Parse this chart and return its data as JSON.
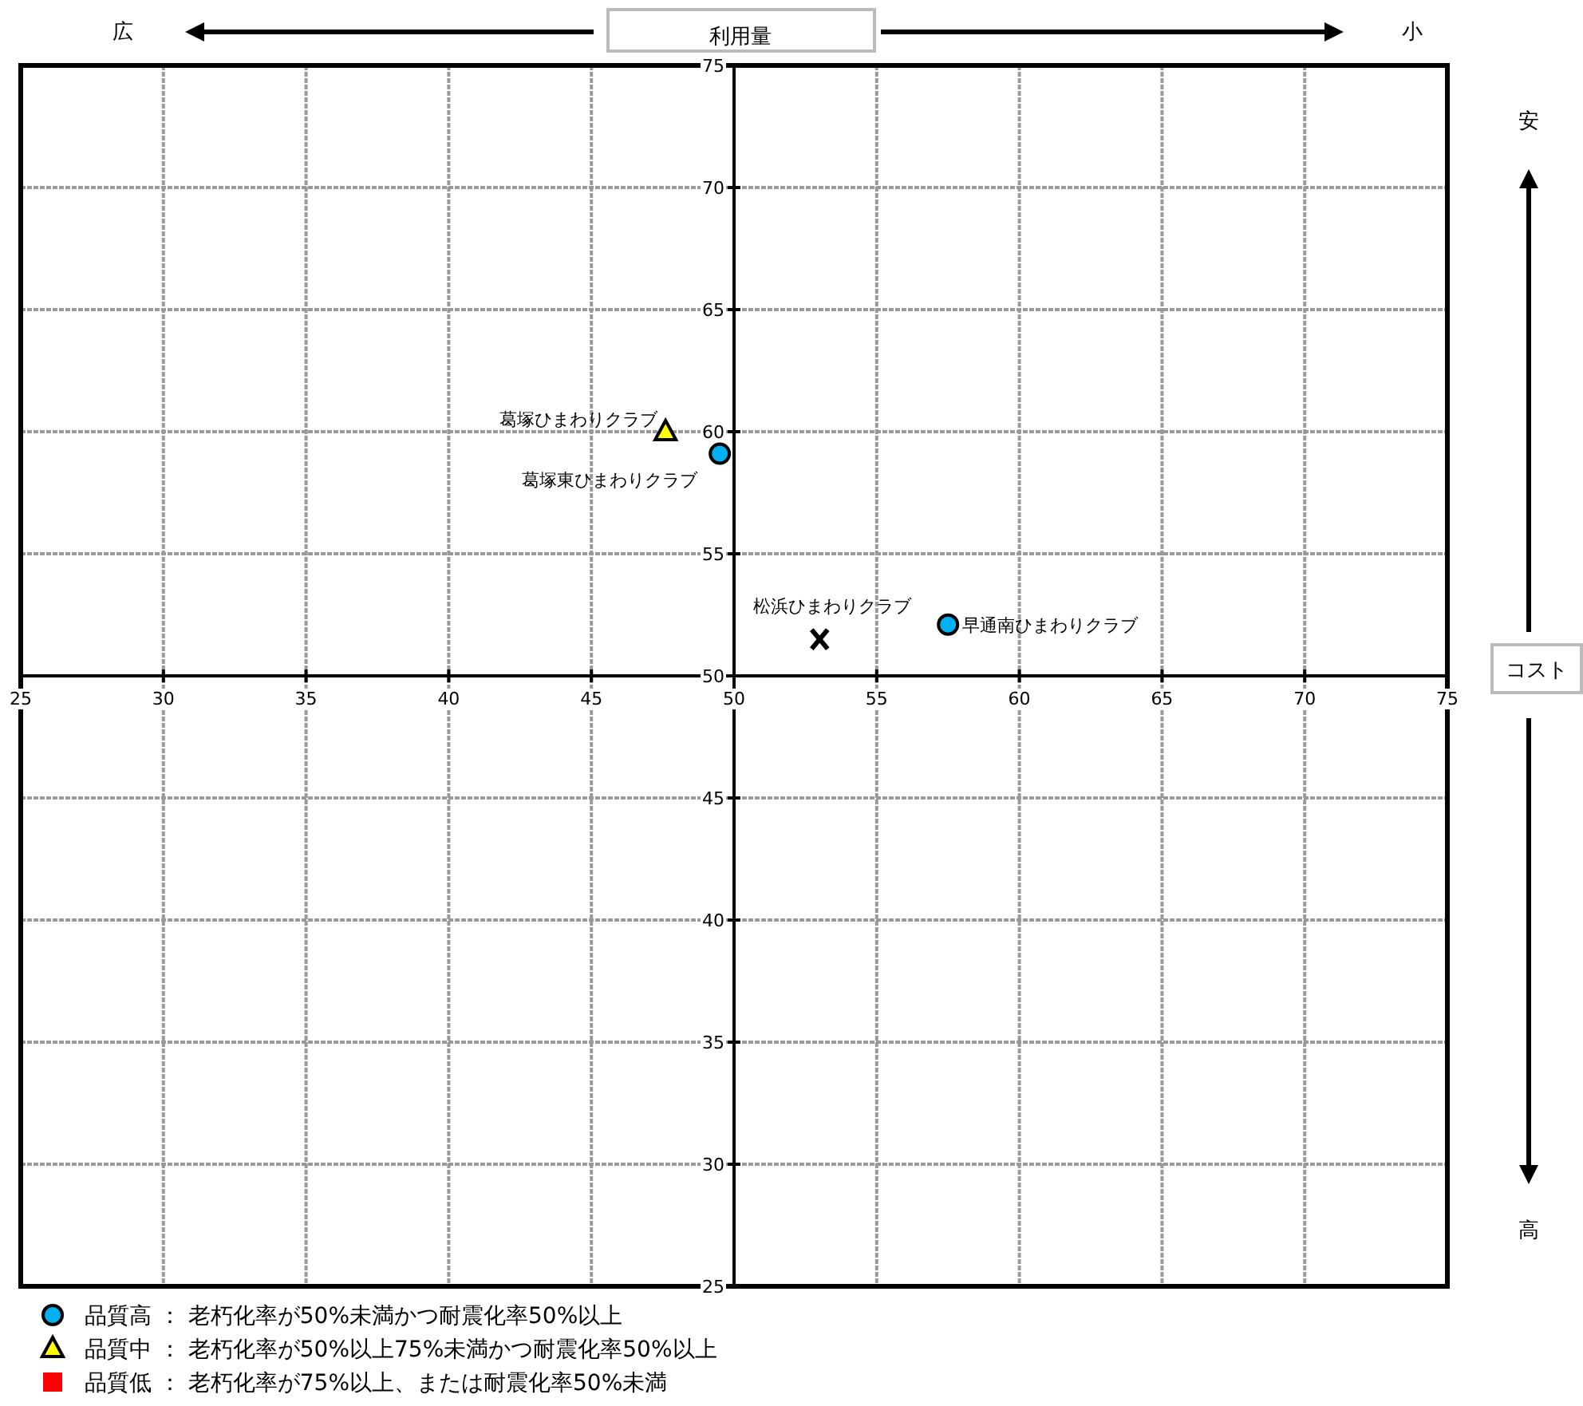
{
  "chart_data": {
    "type": "scatter",
    "xlabel": "利用量",
    "ylabel": "コスト",
    "annotations": [
      "広",
      "小",
      "安",
      "高"
    ],
    "xlim": [
      25,
      75
    ],
    "ylim": [
      25,
      75
    ],
    "xticks": [
      25,
      30,
      35,
      40,
      45,
      50,
      55,
      60,
      65,
      70,
      75
    ],
    "yticks": [
      25,
      30,
      35,
      40,
      45,
      50,
      55,
      60,
      65,
      70,
      75
    ],
    "grid": true,
    "legend": "bottom left",
    "series": [
      {
        "name": "品質高 ： 老朽化率が50%未満かつ耐震化率50%以上",
        "color": "#00b0f0",
        "marker": "circle",
        "x": [
          49.5,
          57.5
        ],
        "values": [
          59.1,
          52.1
        ],
        "value_labels": [
          "葛塚東ひまわりクラブ",
          "早通南ひまわりクラブ"
        ]
      },
      {
        "name": "品質中 ： 老朽化率が50%以上75%未満かつ耐震化率50%以上",
        "color": "#ffff00",
        "marker": "triangle",
        "x": [
          47.6
        ],
        "values": [
          60.0
        ],
        "value_labels": [
          "葛塚ひまわりクラブ"
        ]
      },
      {
        "name": "品質低 ： 老朽化率が75%以上、または耐震化率50%未満",
        "color": "#ff0000",
        "marker": "square"
      },
      {
        "color": "#000000",
        "marker": "cross",
        "x": [
          53.0
        ],
        "values": [
          51.5
        ],
        "value_labels": [
          "松浜ひまわりクラブ"
        ]
      }
    ]
  }
}
